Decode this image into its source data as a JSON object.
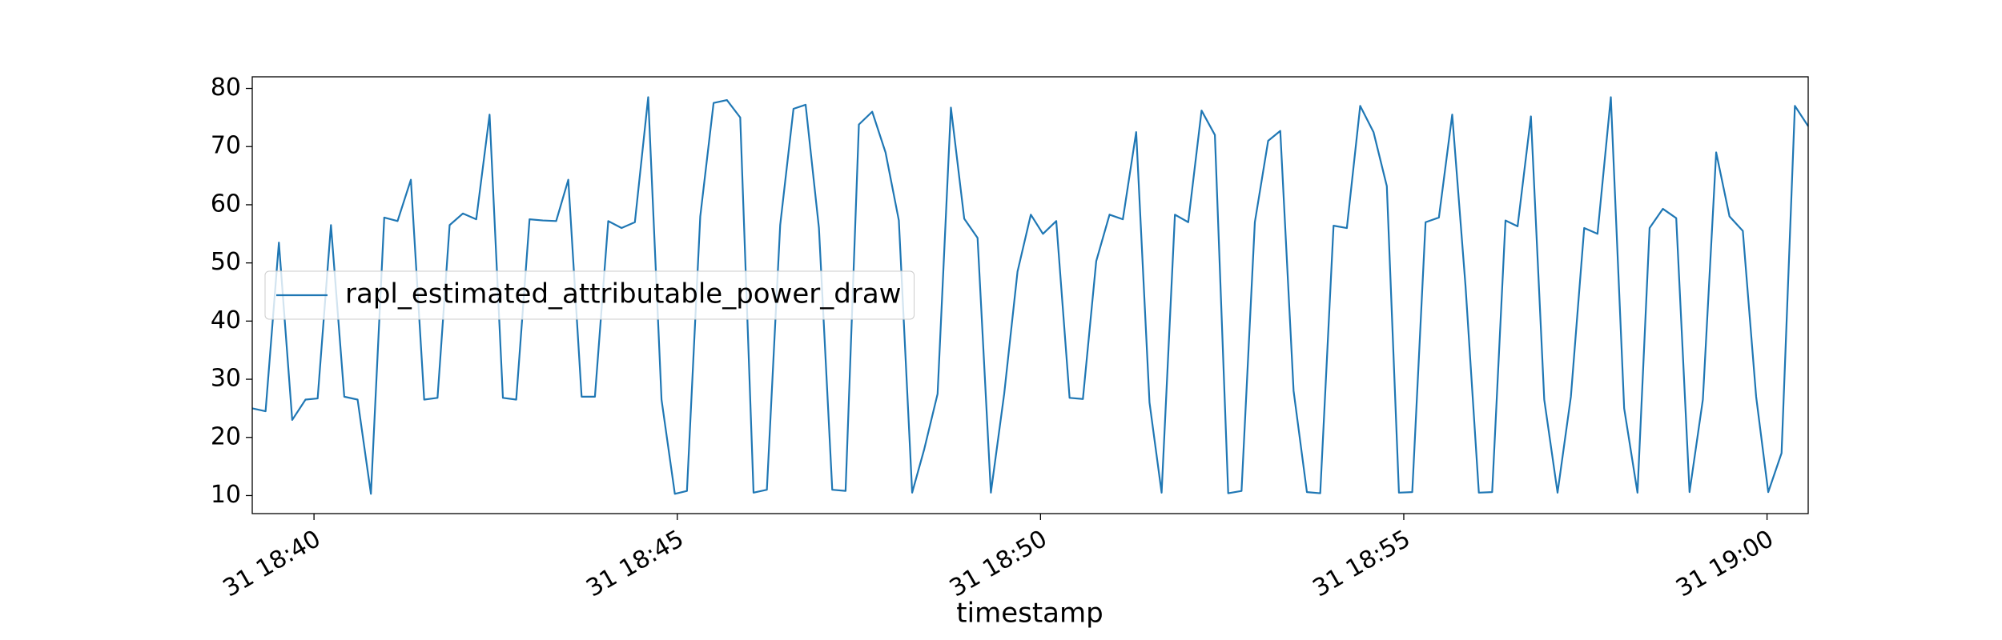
{
  "chart_data": {
    "type": "line",
    "x_label": "timestamp",
    "x": [
      "31 18:39:09",
      "31 18:39:20",
      "31 18:39:31",
      "31 18:39:42",
      "31 18:39:53",
      "31 18:40:03",
      "31 18:40:14",
      "31 18:40:25",
      "31 18:40:36",
      "31 18:40:47",
      "31 18:40:58",
      "31 18:41:09",
      "31 18:41:20",
      "31 18:41:31",
      "31 18:41:42",
      "31 18:41:52",
      "31 18:42:03",
      "31 18:42:14",
      "31 18:42:25",
      "31 18:42:36",
      "31 18:42:47",
      "31 18:42:58",
      "31 18:43:09",
      "31 18:43:20",
      "31 18:43:30",
      "31 18:43:41",
      "31 18:43:52",
      "31 18:44:03",
      "31 18:44:14",
      "31 18:44:25",
      "31 18:44:36",
      "31 18:44:47",
      "31 18:44:58",
      "31 18:45:08",
      "31 18:45:19",
      "31 18:45:30",
      "31 18:45:41",
      "31 18:45:52",
      "31 18:46:03",
      "31 18:46:14",
      "31 18:46:25",
      "31 18:46:36",
      "31 18:46:46",
      "31 18:46:57",
      "31 18:47:08",
      "31 18:47:19",
      "31 18:47:30",
      "31 18:47:41",
      "31 18:47:52",
      "31 18:48:03",
      "31 18:48:14",
      "31 18:48:24",
      "31 18:48:35",
      "31 18:48:46",
      "31 18:48:57",
      "31 18:49:08",
      "31 18:49:19",
      "31 18:49:30",
      "31 18:49:41",
      "31 18:49:52",
      "31 18:50:02",
      "31 18:50:13",
      "31 18:50:24",
      "31 18:50:35",
      "31 18:50:46",
      "31 18:50:57",
      "31 18:51:08",
      "31 18:51:19",
      "31 18:51:30",
      "31 18:51:40",
      "31 18:51:51",
      "31 18:52:02",
      "31 18:52:13",
      "31 18:52:24",
      "31 18:52:35",
      "31 18:52:46",
      "31 18:52:57",
      "31 18:53:08",
      "31 18:53:18",
      "31 18:53:29",
      "31 18:53:40",
      "31 18:53:51",
      "31 18:54:02",
      "31 18:54:13",
      "31 18:54:24",
      "31 18:54:35",
      "31 18:54:46",
      "31 18:54:56",
      "31 18:55:07",
      "31 18:55:18",
      "31 18:55:29",
      "31 18:55:40",
      "31 18:55:51",
      "31 18:56:02",
      "31 18:56:13",
      "31 18:56:24",
      "31 18:56:34",
      "31 18:56:45",
      "31 18:56:56",
      "31 18:57:07",
      "31 18:57:18",
      "31 18:57:29",
      "31 18:57:40",
      "31 18:57:51",
      "31 18:58:02",
      "31 18:58:13",
      "31 18:58:23",
      "31 18:58:34",
      "31 18:58:45",
      "31 18:58:56",
      "31 18:59:07",
      "31 18:59:18",
      "31 18:59:29",
      "31 18:59:40",
      "31 18:59:51",
      "31 19:00:01",
      "31 19:00:12",
      "31 19:00:23",
      "31 19:00:34"
    ],
    "series": [
      {
        "name": "rapl_estimated_attributable_power_draw",
        "color": "#1f77b4",
        "values": [
          25,
          24.5,
          53.5,
          23,
          26.5,
          26.7,
          56.5,
          27,
          26.5,
          10.3,
          57.8,
          57.2,
          64.3,
          26.5,
          26.8,
          56.5,
          58.5,
          57.5,
          75.5,
          26.8,
          26.5,
          57.5,
          57.3,
          57.2,
          64.3,
          27,
          27,
          57.2,
          56,
          57,
          78.5,
          26.5,
          10.3,
          10.8,
          58,
          77.5,
          78,
          75,
          10.5,
          11,
          56.5,
          76.5,
          77.2,
          56,
          11,
          10.8,
          73.8,
          76,
          69,
          57.3,
          10.5,
          18,
          27.5,
          76.7,
          57.6,
          54.3,
          10.5,
          27.5,
          48.5,
          58.3,
          55,
          57.2,
          26.8,
          26.6,
          50.3,
          58.3,
          57.5,
          72.5,
          26,
          10.5,
          58.3,
          57,
          76.2,
          72,
          10.4,
          10.8,
          57,
          71,
          72.7,
          28,
          10.6,
          10.4,
          56.4,
          56,
          77,
          72.5,
          63.2,
          10.5,
          10.6,
          57,
          57.8,
          75.5,
          46,
          10.5,
          10.6,
          57.3,
          56.3,
          75.2,
          26.5,
          10.5,
          27,
          56,
          55,
          78.5,
          25,
          10.5,
          56,
          59.3,
          57.7,
          10.6,
          26.5,
          69,
          58,
          55.5,
          27,
          10.6,
          17.3,
          77,
          73.5
        ]
      }
    ],
    "xlim": [
      "31 18:39:09",
      "31 19:00:34"
    ],
    "xticks": [
      "31 18:40",
      "31 18:45",
      "31 18:50",
      "31 18:55",
      "31 19:00"
    ],
    "ylim": [
      6.9,
      82
    ],
    "yticks": [
      10,
      20,
      30,
      40,
      50,
      60,
      70,
      80
    ],
    "grid": false,
    "legend": "center left"
  }
}
